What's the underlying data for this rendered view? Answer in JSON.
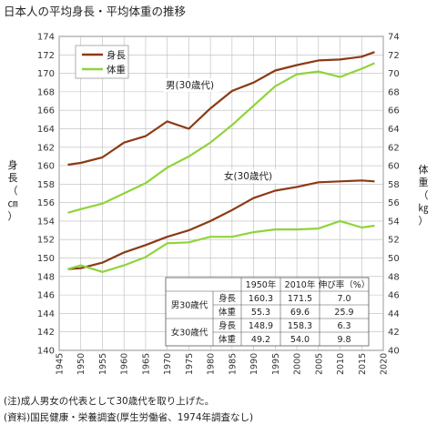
{
  "title": "日本人の平均身長・平均体重の推移",
  "notes": [
    "(注)成人男女の代表として30歳代を取り上げた。",
    "(資料)国民健康・栄養調査(厚生労働省、1974年調査なし)"
  ],
  "colors": {
    "height": "#8b3a14",
    "weight": "#8fd43a",
    "grid": "#bbbbbb"
  },
  "chart_data": {
    "type": "line",
    "xlim": [
      1945,
      2020
    ],
    "x_ticks": [
      1945,
      1950,
      1955,
      1960,
      1965,
      1970,
      1975,
      1980,
      1985,
      1990,
      1995,
      2000,
      2005,
      2010,
      2015,
      2020
    ],
    "y_left": {
      "label": "身長（㎝）",
      "lim": [
        140,
        174
      ],
      "step": 2
    },
    "y_right": {
      "label": "体重（㎏）",
      "lim": [
        40,
        74
      ],
      "step": 2
    },
    "legend": {
      "position": "top-left",
      "entries": [
        {
          "name": "身長"
        },
        {
          "name": "体重"
        }
      ]
    },
    "annotations": [
      {
        "text": "男(30歳代)"
      },
      {
        "text": "女(30歳代)"
      }
    ],
    "series": [
      {
        "name": "身長",
        "group": "男",
        "axis": "left",
        "years": [
          1947,
          1950,
          1955,
          1960,
          1965,
          1970,
          1975,
          1980,
          1985,
          1990,
          1995,
          2000,
          2005,
          2010,
          2015,
          2018
        ],
        "values": [
          160.1,
          160.3,
          160.9,
          162.5,
          163.2,
          164.8,
          164.0,
          166.2,
          168.1,
          169.0,
          170.3,
          170.9,
          171.4,
          171.5,
          171.8,
          172.3
        ]
      },
      {
        "name": "体重",
        "group": "男",
        "axis": "right",
        "years": [
          1947,
          1950,
          1955,
          1960,
          1965,
          1970,
          1975,
          1980,
          1985,
          1990,
          1995,
          2000,
          2005,
          2010,
          2015,
          2018
        ],
        "values": [
          54.9,
          55.3,
          55.9,
          57.0,
          58.1,
          59.8,
          61.0,
          62.5,
          64.4,
          66.5,
          68.6,
          69.9,
          70.2,
          69.6,
          70.5,
          71.1
        ]
      },
      {
        "name": "身長",
        "group": "女",
        "axis": "left",
        "years": [
          1947,
          1950,
          1955,
          1960,
          1965,
          1970,
          1975,
          1980,
          1985,
          1990,
          1995,
          2000,
          2005,
          2010,
          2015,
          2018
        ],
        "values": [
          148.8,
          148.9,
          149.5,
          150.6,
          151.4,
          152.3,
          153.0,
          154.0,
          155.2,
          156.5,
          157.3,
          157.7,
          158.2,
          158.3,
          158.4,
          158.3
        ]
      },
      {
        "name": "体重",
        "group": "女",
        "axis": "right",
        "years": [
          1947,
          1950,
          1955,
          1960,
          1965,
          1970,
          1975,
          1980,
          1985,
          1990,
          1995,
          2000,
          2005,
          2010,
          2015,
          2018
        ],
        "values": [
          48.8,
          49.2,
          48.5,
          49.2,
          50.1,
          51.6,
          51.7,
          52.3,
          52.3,
          52.8,
          53.1,
          53.1,
          53.2,
          54.0,
          53.3,
          53.5
        ]
      }
    ],
    "table": {
      "headers": [
        "",
        "",
        "1950年",
        "2010年",
        "伸び率（%）"
      ],
      "rows": [
        [
          "男30歳代",
          "身長",
          "160.3",
          "171.5",
          "7.0"
        ],
        [
          "",
          "体重",
          "55.3",
          "69.6",
          "25.9"
        ],
        [
          "女30歳代",
          "身長",
          "148.9",
          "158.3",
          "6.3"
        ],
        [
          "",
          "体重",
          "49.2",
          "54.0",
          "9.8"
        ]
      ]
    }
  }
}
